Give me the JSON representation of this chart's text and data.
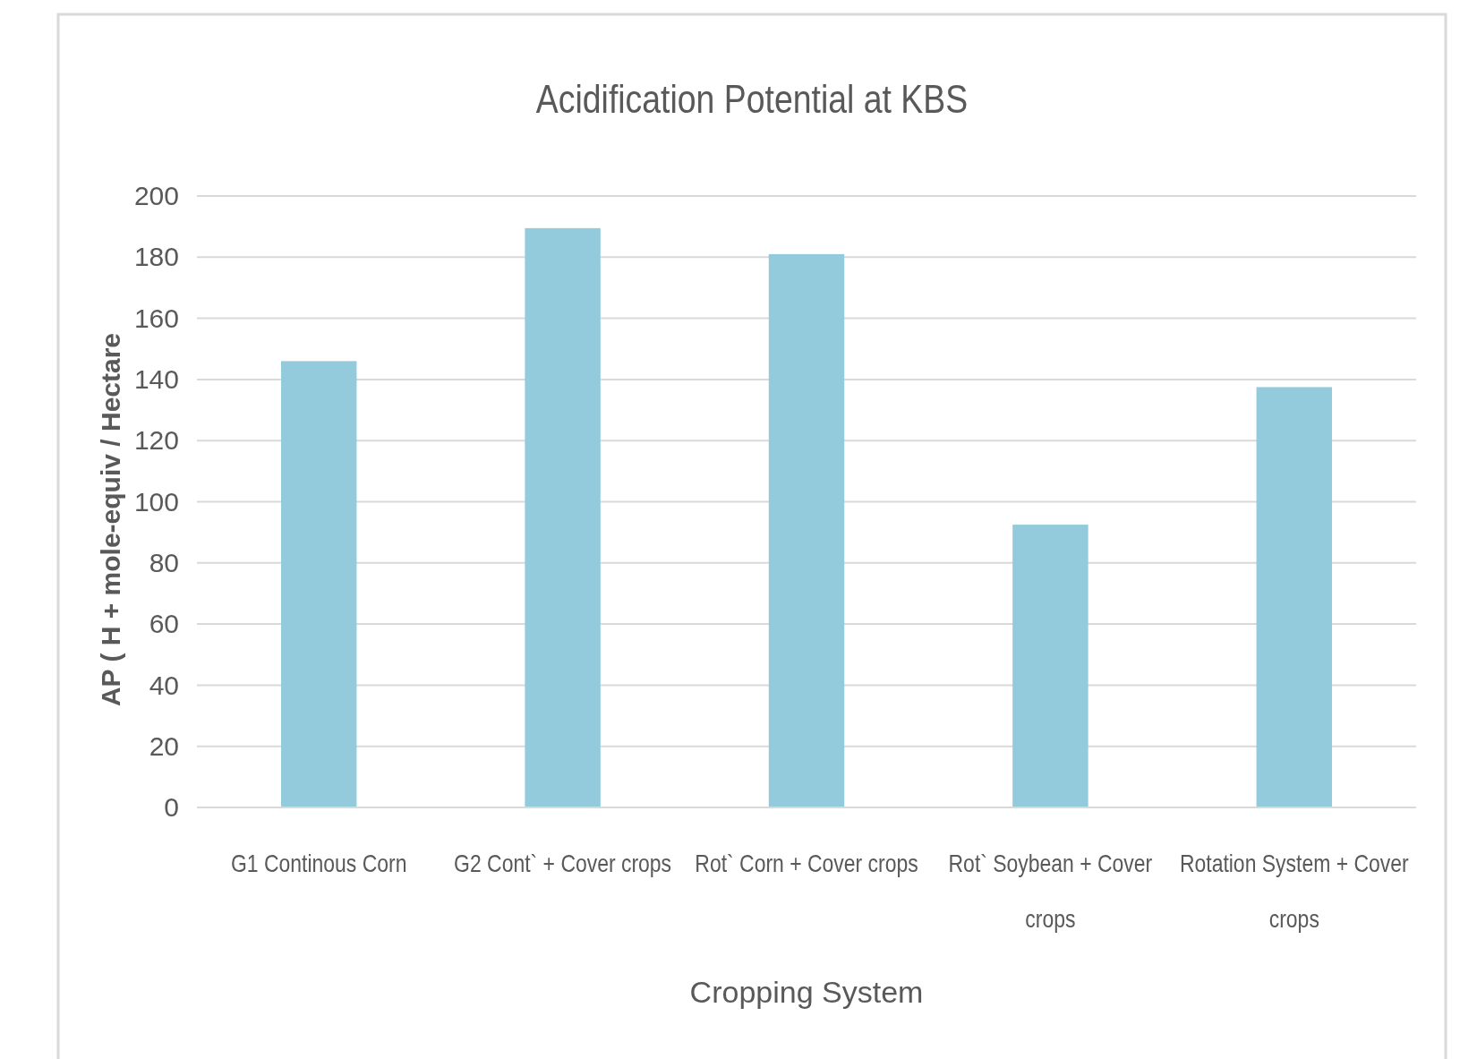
{
  "chart_data": {
    "type": "bar",
    "title": "Acidification Potential at KBS",
    "xlabel": "Cropping System",
    "ylabel": "AP ( H + mole-equiv / Hectare",
    "categories": [
      "G1 Continous Corn",
      "G2 Cont` + Cover crops",
      "Rot` Corn + Cover crops",
      "Rot` Soybean + Cover crops",
      "Rotation System + Cover crops"
    ],
    "values": [
      146,
      189.5,
      181,
      92.5,
      137.5
    ],
    "color": "#93cadc",
    "ylim": [
      0,
      200
    ],
    "yticks": [
      0,
      20,
      40,
      60,
      80,
      100,
      120,
      140,
      160,
      180,
      200
    ],
    "grid": "y"
  }
}
